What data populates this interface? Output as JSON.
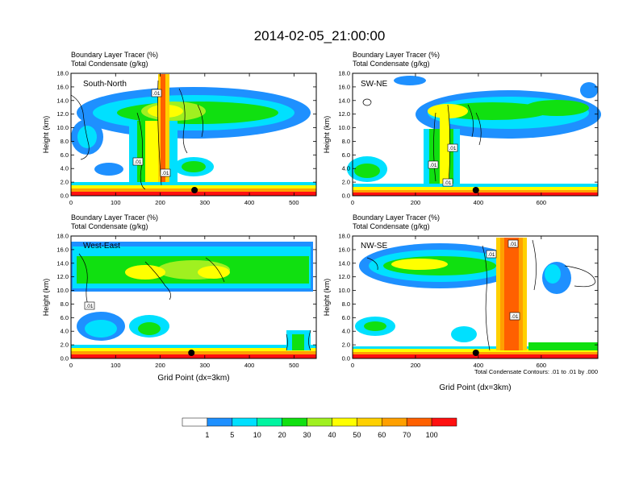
{
  "title": "2014-02-05_21:00:00",
  "panel_header_line1": "Boundary Layer Tracer   (%)",
  "panel_header_line2": "Total Condensate   (g/kg)",
  "ylabel": "Height (km)",
  "xlabel": "Grid Point (dx=3km)",
  "contour_note": "Total Condensate Contours: .01 to .01 by .000",
  "chart_data": [
    {
      "type": "heatmap",
      "name": "South-North",
      "xlim": [
        0,
        550
      ],
      "ylim": [
        0,
        18
      ],
      "xticks": [
        "0",
        "100",
        "200",
        "300",
        "400",
        "500"
      ],
      "yticks": [
        "0.0",
        "2.0",
        "4.0",
        "6.0",
        "8.0",
        "10.0",
        "12.0",
        "14.0",
        "16.0",
        "18.0"
      ],
      "contour_labels": [
        ".01",
        ".01",
        ".01"
      ],
      "marker_x": 277
    },
    {
      "type": "heatmap",
      "name": "SW-NE",
      "xlim": [
        0,
        780
      ],
      "ylim": [
        0,
        18
      ],
      "xticks": [
        "0",
        "200",
        "400",
        "600"
      ],
      "yticks": [
        "0.0",
        "2.0",
        "4.0",
        "6.0",
        "8.0",
        "10.0",
        "12.0",
        "14.0",
        "16.0",
        "18.0"
      ],
      "contour_labels": [
        ".01",
        ".01",
        ".01"
      ],
      "marker_x": 392
    },
    {
      "type": "heatmap",
      "name": "West-East",
      "xlim": [
        0,
        550
      ],
      "ylim": [
        0,
        18
      ],
      "xticks": [
        "0",
        "100",
        "200",
        "300",
        "400",
        "500"
      ],
      "yticks": [
        "0.0",
        "2.0",
        "4.0",
        "6.0",
        "8.0",
        "10.0",
        "12.0",
        "14.0",
        "16.0",
        "18.0"
      ],
      "contour_labels": [
        ".01"
      ],
      "marker_x": 270
    },
    {
      "type": "heatmap",
      "name": "NW-SE",
      "xlim": [
        0,
        780
      ],
      "ylim": [
        0,
        18
      ],
      "xticks": [
        "0",
        "200",
        "400",
        "600"
      ],
      "yticks": [
        "0.0",
        "2.0",
        "4.0",
        "6.0",
        "8.0",
        "10.0",
        "12.0",
        "14.0",
        "16.0",
        "18.0"
      ],
      "contour_labels": [
        ".01",
        ".01",
        ".01"
      ],
      "marker_x": 392
    }
  ],
  "colorbar": {
    "labels": [
      "1",
      "5",
      "10",
      "20",
      "30",
      "40",
      "50",
      "60",
      "70",
      "100"
    ],
    "colors": [
      "#ffffff",
      "#1e90ff",
      "#00e0ff",
      "#00f5a0",
      "#10e010",
      "#a0f020",
      "#ffff00",
      "#ffd000",
      "#ffa000",
      "#ff6000",
      "#ff1010"
    ]
  }
}
